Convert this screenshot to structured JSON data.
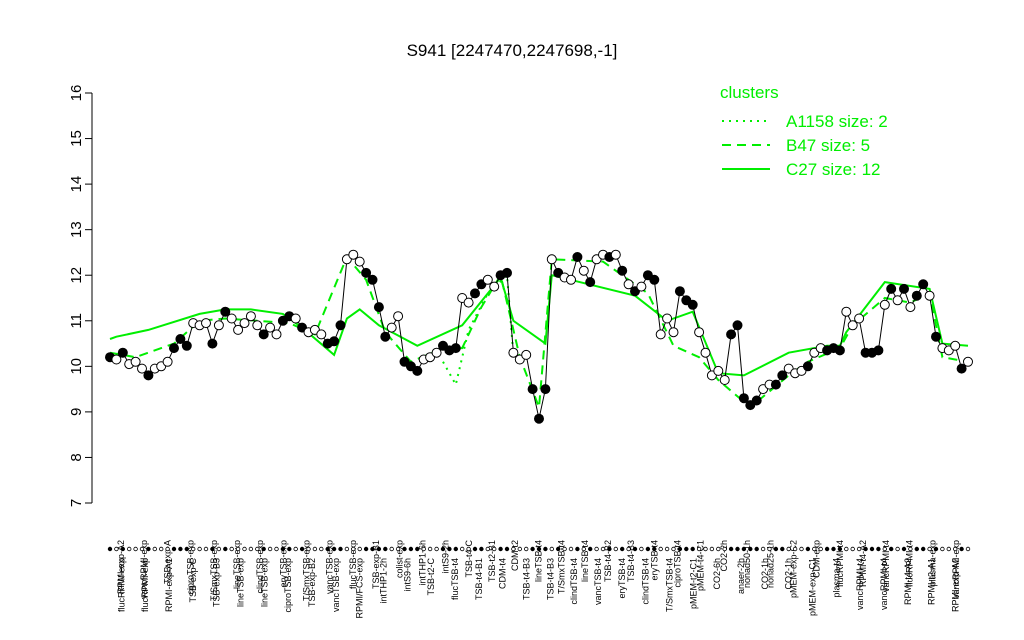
{
  "chart_data": {
    "type": "line",
    "title": "S941 [2247470,2247698,-1]",
    "xlabel": "",
    "ylabel": "",
    "ylim": [
      7,
      16
    ],
    "yticks": [
      7,
      8,
      9,
      10,
      11,
      12,
      13,
      14,
      15,
      16
    ],
    "grid": false,
    "legend": {
      "title": "clusters",
      "placement": "top-right",
      "entries": [
        {
          "label": "A1158 size: 2",
          "style": "dotted"
        },
        {
          "label": "B47 size: 5",
          "style": "dashed"
        },
        {
          "label": "C27 size: 12",
          "style": "solid"
        }
      ]
    },
    "colors": {
      "cluster_line": "#00ee00",
      "point_stroke": "#000000",
      "open_fill": "#ffffff",
      "filled": "#000000"
    },
    "labels_top": [
      "RPMI-exp-A2",
      "vancRPMI-exp",
      "TSB-exp-A",
      "ciproTSB-exp",
      "T/SmxTSB-exp",
      "lineTSB-exp",
      "clindTSB-exp",
      "eryTSB-exp",
      "T/SmxTSB-exp",
      "vancTSB-exp",
      "flucTSB-exp",
      "TSB-exp-B1",
      "colist-exp",
      "intTHP1-6h",
      "intS9-2h",
      "TSB-t4-C",
      "TSB-t2-B1",
      "CDM-t2",
      "lineTSB-t4",
      "T/SmxTSB-t4",
      "lineTSB-t4",
      "TSB-t4-B2",
      "TSB-t4-B3",
      "eryTSB-t4",
      "ciproTSB-t4",
      "pMEM-t4-C1",
      "CO2-2h",
      "nonad50-1h",
      "nonad25-1h",
      "pMEM-exp-C2",
      "CDM-exp",
      "flucRPMI-t4",
      "RPMI-t4-A2",
      "vancRPMI-t4",
      "flucRPMI-t4",
      "plasma-exp",
      "vancRPMI-exp"
    ],
    "labels_bottom": [
      "flucRPMI-exp",
      "flucRPMI-exp",
      "RPMI-exp-A1",
      "TSB-exp-C",
      "TSB-exp-B3",
      "lineTSB-exp",
      "lineTSB-exp",
      "ciproTSB-exp",
      "TSB-exp-B2",
      "vancTSB-exp",
      "RPMI/FCS-exp",
      "intTHP1-2h",
      "intS9-6h",
      "TSB-t2-C",
      "flucTSB-t4",
      "TSB-t4-B1",
      "CDM-t4",
      "TSB-t4-B3",
      "TSB-t4-B3",
      "clindTSB-t4",
      "vancTSB-t4",
      "eryTSB-t4",
      "clindTSB-t4",
      "T/SmxTSB-t4",
      "pMEM-t2-C1",
      "CO2-6h",
      "anaer-2h",
      "CO2-1h",
      "CO2-1h",
      "pMEM-exp-C1",
      "plasma-t4",
      "vancRPMI-t4",
      "vancRPMI-t4",
      "RPMI-t4-A2",
      "RPMI-t2-A1",
      "RPMI-exp-A2"
    ],
    "points": [
      {
        "x": 1,
        "y": 10.2,
        "f": 1
      },
      {
        "x": 2,
        "y": 10.15,
        "f": 0
      },
      {
        "x": 3,
        "y": 10.3,
        "f": 1
      },
      {
        "x": 4,
        "y": 10.05,
        "f": 0
      },
      {
        "x": 5,
        "y": 10.1,
        "f": 0
      },
      {
        "x": 6,
        "y": 9.95,
        "f": 0
      },
      {
        "x": 7,
        "y": 9.8,
        "f": 1
      },
      {
        "x": 8,
        "y": 9.95,
        "f": 0
      },
      {
        "x": 9,
        "y": 10.0,
        "f": 0
      },
      {
        "x": 10,
        "y": 10.1,
        "f": 0
      },
      {
        "x": 11,
        "y": 10.4,
        "f": 1
      },
      {
        "x": 12,
        "y": 10.6,
        "f": 1
      },
      {
        "x": 13,
        "y": 10.45,
        "f": 1
      },
      {
        "x": 14,
        "y": 10.95,
        "f": 0
      },
      {
        "x": 15,
        "y": 10.9,
        "f": 0
      },
      {
        "x": 16,
        "y": 10.95,
        "f": 0
      },
      {
        "x": 17,
        "y": 10.5,
        "f": 1
      },
      {
        "x": 18,
        "y": 10.9,
        "f": 0
      },
      {
        "x": 19,
        "y": 11.2,
        "f": 1
      },
      {
        "x": 20,
        "y": 11.05,
        "f": 0
      },
      {
        "x": 21,
        "y": 10.8,
        "f": 0
      },
      {
        "x": 22,
        "y": 10.95,
        "f": 0
      },
      {
        "x": 23,
        "y": 11.1,
        "f": 0
      },
      {
        "x": 24,
        "y": 10.9,
        "f": 0
      },
      {
        "x": 25,
        "y": 10.7,
        "f": 1
      },
      {
        "x": 26,
        "y": 10.85,
        "f": 0
      },
      {
        "x": 27,
        "y": 10.7,
        "f": 0
      },
      {
        "x": 28,
        "y": 11.0,
        "f": 1
      },
      {
        "x": 29,
        "y": 11.1,
        "f": 1
      },
      {
        "x": 30,
        "y": 11.05,
        "f": 0
      },
      {
        "x": 31,
        "y": 10.85,
        "f": 1
      },
      {
        "x": 32,
        "y": 10.75,
        "f": 0
      },
      {
        "x": 33,
        "y": 10.8,
        "f": 0
      },
      {
        "x": 34,
        "y": 10.7,
        "f": 0
      },
      {
        "x": 35,
        "y": 10.5,
        "f": 1
      },
      {
        "x": 36,
        "y": 10.55,
        "f": 1
      },
      {
        "x": 37,
        "y": 10.9,
        "f": 1
      },
      {
        "x": 38,
        "y": 12.35,
        "f": 0
      },
      {
        "x": 39,
        "y": 12.45,
        "f": 0
      },
      {
        "x": 40,
        "y": 12.3,
        "f": 0
      },
      {
        "x": 41,
        "y": 12.05,
        "f": 1
      },
      {
        "x": 42,
        "y": 11.9,
        "f": 1
      },
      {
        "x": 43,
        "y": 11.3,
        "f": 1
      },
      {
        "x": 44,
        "y": 10.65,
        "f": 1
      },
      {
        "x": 45,
        "y": 10.85,
        "f": 0
      },
      {
        "x": 46,
        "y": 11.1,
        "f": 0
      },
      {
        "x": 47,
        "y": 10.1,
        "f": 1
      },
      {
        "x": 48,
        "y": 10.0,
        "f": 1
      },
      {
        "x": 49,
        "y": 9.9,
        "f": 1
      },
      {
        "x": 50,
        "y": 10.15,
        "f": 0
      },
      {
        "x": 51,
        "y": 10.2,
        "f": 0
      },
      {
        "x": 52,
        "y": 10.3,
        "f": 0
      },
      {
        "x": 53,
        "y": 10.45,
        "f": 1
      },
      {
        "x": 54,
        "y": 10.35,
        "f": 1
      },
      {
        "x": 55,
        "y": 10.4,
        "f": 1
      },
      {
        "x": 56,
        "y": 11.5,
        "f": 0
      },
      {
        "x": 57,
        "y": 11.4,
        "f": 0
      },
      {
        "x": 58,
        "y": 11.6,
        "f": 1
      },
      {
        "x": 59,
        "y": 11.8,
        "f": 1
      },
      {
        "x": 60,
        "y": 11.9,
        "f": 0
      },
      {
        "x": 61,
        "y": 11.75,
        "f": 0
      },
      {
        "x": 62,
        "y": 12.0,
        "f": 1
      },
      {
        "x": 63,
        "y": 12.05,
        "f": 1
      },
      {
        "x": 64,
        "y": 10.3,
        "f": 0
      },
      {
        "x": 65,
        "y": 10.15,
        "f": 0
      },
      {
        "x": 66,
        "y": 10.25,
        "f": 0
      },
      {
        "x": 67,
        "y": 9.5,
        "f": 1
      },
      {
        "x": 68,
        "y": 8.85,
        "f": 1
      },
      {
        "x": 69,
        "y": 9.5,
        "f": 1
      },
      {
        "x": 70,
        "y": 12.35,
        "f": 0
      },
      {
        "x": 71,
        "y": 12.05,
        "f": 1
      },
      {
        "x": 72,
        "y": 11.95,
        "f": 0
      },
      {
        "x": 73,
        "y": 11.9,
        "f": 0
      },
      {
        "x": 74,
        "y": 12.4,
        "f": 1
      },
      {
        "x": 75,
        "y": 12.1,
        "f": 0
      },
      {
        "x": 76,
        "y": 11.85,
        "f": 1
      },
      {
        "x": 77,
        "y": 12.35,
        "f": 0
      },
      {
        "x": 78,
        "y": 12.45,
        "f": 0
      },
      {
        "x": 79,
        "y": 12.4,
        "f": 1
      },
      {
        "x": 80,
        "y": 12.45,
        "f": 0
      },
      {
        "x": 81,
        "y": 12.1,
        "f": 1
      },
      {
        "x": 82,
        "y": 11.8,
        "f": 0
      },
      {
        "x": 83,
        "y": 11.65,
        "f": 1
      },
      {
        "x": 84,
        "y": 11.75,
        "f": 0
      },
      {
        "x": 85,
        "y": 12.0,
        "f": 1
      },
      {
        "x": 86,
        "y": 11.9,
        "f": 1
      },
      {
        "x": 87,
        "y": 10.7,
        "f": 0
      },
      {
        "x": 88,
        "y": 11.05,
        "f": 0
      },
      {
        "x": 89,
        "y": 10.75,
        "f": 0
      },
      {
        "x": 90,
        "y": 11.65,
        "f": 1
      },
      {
        "x": 91,
        "y": 11.45,
        "f": 1
      },
      {
        "x": 92,
        "y": 11.35,
        "f": 1
      },
      {
        "x": 93,
        "y": 10.75,
        "f": 0
      },
      {
        "x": 94,
        "y": 10.3,
        "f": 0
      },
      {
        "x": 95,
        "y": 9.8,
        "f": 0
      },
      {
        "x": 96,
        "y": 9.9,
        "f": 0
      },
      {
        "x": 97,
        "y": 9.7,
        "f": 0
      },
      {
        "x": 98,
        "y": 10.7,
        "f": 1
      },
      {
        "x": 99,
        "y": 10.9,
        "f": 1
      },
      {
        "x": 100,
        "y": 9.3,
        "f": 1
      },
      {
        "x": 101,
        "y": 9.15,
        "f": 1
      },
      {
        "x": 102,
        "y": 9.25,
        "f": 1
      },
      {
        "x": 103,
        "y": 9.5,
        "f": 0
      },
      {
        "x": 104,
        "y": 9.6,
        "f": 0
      },
      {
        "x": 105,
        "y": 9.6,
        "f": 1
      },
      {
        "x": 106,
        "y": 9.8,
        "f": 1
      },
      {
        "x": 107,
        "y": 9.95,
        "f": 0
      },
      {
        "x": 108,
        "y": 9.85,
        "f": 0
      },
      {
        "x": 109,
        "y": 9.9,
        "f": 0
      },
      {
        "x": 110,
        "y": 10.0,
        "f": 1
      },
      {
        "x": 111,
        "y": 10.3,
        "f": 0
      },
      {
        "x": 112,
        "y": 10.4,
        "f": 0
      },
      {
        "x": 113,
        "y": 10.35,
        "f": 1
      },
      {
        "x": 114,
        "y": 10.4,
        "f": 1
      },
      {
        "x": 115,
        "y": 10.35,
        "f": 1
      },
      {
        "x": 116,
        "y": 11.2,
        "f": 0
      },
      {
        "x": 117,
        "y": 10.9,
        "f": 0
      },
      {
        "x": 118,
        "y": 11.05,
        "f": 0
      },
      {
        "x": 119,
        "y": 10.3,
        "f": 1
      },
      {
        "x": 120,
        "y": 10.3,
        "f": 1
      },
      {
        "x": 121,
        "y": 10.35,
        "f": 1
      },
      {
        "x": 122,
        "y": 11.35,
        "f": 0
      },
      {
        "x": 123,
        "y": 11.7,
        "f": 1
      },
      {
        "x": 124,
        "y": 11.45,
        "f": 0
      },
      {
        "x": 125,
        "y": 11.7,
        "f": 1
      },
      {
        "x": 126,
        "y": 11.3,
        "f": 0
      },
      {
        "x": 127,
        "y": 11.55,
        "f": 1
      },
      {
        "x": 128,
        "y": 11.8,
        "f": 1
      },
      {
        "x": 129,
        "y": 11.55,
        "f": 0
      },
      {
        "x": 130,
        "y": 10.65,
        "f": 1
      },
      {
        "x": 131,
        "y": 10.4,
        "f": 0
      },
      {
        "x": 132,
        "y": 10.35,
        "f": 0
      },
      {
        "x": 133,
        "y": 10.45,
        "f": 0
      },
      {
        "x": 134,
        "y": 9.95,
        "f": 1
      },
      {
        "x": 135,
        "y": 10.1,
        "f": 0
      }
    ],
    "series": [
      {
        "name": "C27 size: 12",
        "style": "solid",
        "x": [
          1,
          2,
          7,
          15,
          19,
          23,
          28,
          31,
          36,
          38,
          40,
          43,
          49,
          56,
          62,
          64,
          69,
          70,
          83,
          88,
          92,
          96,
          100,
          107,
          113,
          115,
          116,
          122,
          129,
          131,
          135
        ],
        "y": [
          10.6,
          10.65,
          10.8,
          11.15,
          11.25,
          11.25,
          11.15,
          10.85,
          10.25,
          11.05,
          11.25,
          10.9,
          10.45,
          10.9,
          11.95,
          11.0,
          10.5,
          12.0,
          11.55,
          11.0,
          11.2,
          9.85,
          9.8,
          10.3,
          10.45,
          10.45,
          10.75,
          11.85,
          11.7,
          10.5,
          10.45
        ]
      },
      {
        "name": "B47 size: 5",
        "style": "dashed",
        "x": [
          1,
          5,
          11,
          15,
          19,
          24,
          29,
          33,
          38,
          41,
          44,
          48,
          53,
          56,
          59,
          62,
          65,
          68,
          70,
          78,
          85,
          89,
          93,
          96,
          101,
          107,
          110,
          115,
          117,
          122,
          126,
          129,
          131,
          135
        ],
        "y": [
          10.3,
          10.2,
          10.5,
          11.0,
          11.05,
          11.0,
          10.95,
          10.7,
          12.4,
          11.9,
          10.75,
          10.1,
          10.4,
          10.4,
          11.3,
          12.0,
          10.2,
          9.1,
          12.35,
          12.3,
          11.6,
          10.45,
          10.2,
          9.7,
          9.1,
          9.8,
          10.1,
          10.4,
          10.9,
          11.5,
          11.4,
          11.6,
          10.2,
          10.1
        ]
      },
      {
        "name": "A1158 size: 2",
        "style": "dotted",
        "x": [
          53,
          55,
          57,
          60,
          63,
          64,
          66
        ],
        "y": [
          10.1,
          9.6,
          10.8,
          11.6,
          12.0,
          10.25,
          10.1
        ]
      }
    ]
  }
}
